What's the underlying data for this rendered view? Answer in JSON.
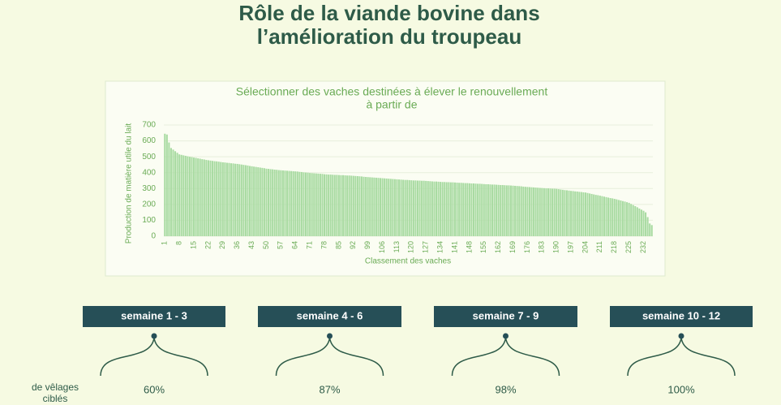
{
  "header": {
    "title_lines": [
      "Rôle de la viande bovine dans",
      "l’amélioration du troupeau"
    ]
  },
  "chart_data": {
    "type": "bar",
    "title_lines": [
      "Sélectionner des vaches destinées à élever le renouvellement",
      "à partir de"
    ],
    "y_label": "Production de matière utile du lait",
    "x_label": "Classement des vaches",
    "color": "#a9dba2",
    "ylim": [
      0,
      700
    ],
    "yticks": [
      0,
      100,
      200,
      300,
      400,
      500,
      600,
      700
    ],
    "grid": true,
    "categories": [
      "1",
      null,
      null,
      null,
      null,
      null,
      null,
      "8",
      null,
      null,
      null,
      null,
      null,
      null,
      "15",
      null,
      null,
      null,
      null,
      null,
      null,
      "22",
      null,
      null,
      null,
      null,
      null,
      null,
      "29",
      null,
      null,
      null,
      null,
      null,
      null,
      "36",
      null,
      null,
      null,
      null,
      null,
      null,
      "43",
      null,
      null,
      null,
      null,
      null,
      null,
      "50",
      null,
      null,
      null,
      null,
      null,
      null,
      "57",
      null,
      null,
      null,
      null,
      null,
      null,
      "64",
      null,
      null,
      null,
      null,
      null,
      null,
      "71",
      null,
      null,
      null,
      null,
      null,
      null,
      "78",
      null,
      null,
      null,
      null,
      null,
      null,
      "85",
      null,
      null,
      null,
      null,
      null,
      null,
      "92",
      null,
      null,
      null,
      null,
      null,
      null,
      "99",
      null,
      null,
      null,
      null,
      null,
      null,
      "106",
      null,
      null,
      null,
      null,
      null,
      null,
      "113",
      null,
      null,
      null,
      null,
      null,
      null,
      "120",
      null,
      null,
      null,
      null,
      null,
      null,
      "127",
      null,
      null,
      null,
      null,
      null,
      null,
      "134",
      null,
      null,
      null,
      null,
      null,
      null,
      "141",
      null,
      null,
      null,
      null,
      null,
      null,
      "148",
      null,
      null,
      null,
      null,
      null,
      null,
      "155",
      null,
      null,
      null,
      null,
      null,
      null,
      "162",
      null,
      null,
      null,
      null,
      null,
      null,
      "169",
      null,
      null,
      null,
      null,
      null,
      null,
      "176",
      null,
      null,
      null,
      null,
      null,
      null,
      "183",
      null,
      null,
      null,
      null,
      null,
      null,
      "190",
      null,
      null,
      null,
      null,
      null,
      null,
      "197",
      null,
      null,
      null,
      null,
      null,
      null,
      "204",
      null,
      null,
      null,
      null,
      null,
      null,
      "211",
      null,
      null,
      null,
      null,
      null,
      null,
      "218",
      null,
      null,
      null,
      null,
      null,
      null,
      "225",
      null,
      null,
      null,
      null,
      null,
      null,
      "232",
      null,
      null,
      null,
      null
    ],
    "values": [
      645,
      640,
      590,
      555,
      545,
      535,
      525,
      515,
      512,
      509,
      506,
      503,
      500,
      498,
      495,
      493,
      490,
      488,
      485,
      483,
      480,
      478,
      476,
      474,
      472,
      471,
      469,
      467,
      465,
      464,
      462,
      461,
      459,
      458,
      456,
      455,
      453,
      451,
      449,
      447,
      445,
      442,
      440,
      438,
      436,
      434,
      432,
      430,
      428,
      425,
      424,
      422,
      421,
      419,
      418,
      416,
      415,
      414,
      413,
      412,
      411,
      410,
      409,
      408,
      407,
      405,
      404,
      402,
      401,
      400,
      398,
      397,
      396,
      395,
      394,
      393,
      392,
      390,
      389,
      388,
      388,
      387,
      386,
      386,
      385,
      384,
      384,
      383,
      382,
      382,
      381,
      380,
      379,
      378,
      377,
      376,
      374,
      373,
      372,
      371,
      370,
      369,
      368,
      367,
      366,
      365,
      364,
      363,
      362,
      361,
      360,
      359,
      358,
      357,
      356,
      355,
      354,
      354,
      353,
      352,
      351,
      351,
      350,
      350,
      349,
      349,
      348,
      347,
      346,
      345,
      344,
      344,
      343,
      342,
      341,
      341,
      340,
      340,
      339,
      339,
      338,
      337,
      336,
      336,
      335,
      334,
      334,
      333,
      332,
      332,
      331,
      330,
      330,
      329,
      328,
      327,
      327,
      326,
      325,
      325,
      324,
      323,
      322,
      322,
      321,
      320,
      320,
      319,
      318,
      317,
      316,
      315,
      314,
      312,
      311,
      310,
      309,
      308,
      307,
      306,
      305,
      304,
      303,
      302,
      301,
      301,
      300,
      299,
      299,
      298,
      296,
      294,
      292,
      290,
      289,
      287,
      285,
      284,
      282,
      281,
      279,
      278,
      276,
      275,
      272,
      269,
      266,
      263,
      260,
      258,
      255,
      252,
      249,
      246,
      243,
      240,
      238,
      235,
      232,
      228,
      225,
      221,
      218,
      214,
      210,
      203,
      196,
      189,
      182,
      174,
      167,
      160,
      150,
      120,
      80,
      70
    ]
  },
  "weeks": [
    {
      "label": "semaine 1 - 3",
      "target": "60%"
    },
    {
      "label": "semaine 4 - 6",
      "target": "87%"
    },
    {
      "label": "semaine 7 - 9",
      "target": "98%"
    },
    {
      "label": "semaine 10 - 12",
      "target": "100%"
    }
  ],
  "row_label_lines": [
    "de vêlages",
    "ciblés"
  ]
}
